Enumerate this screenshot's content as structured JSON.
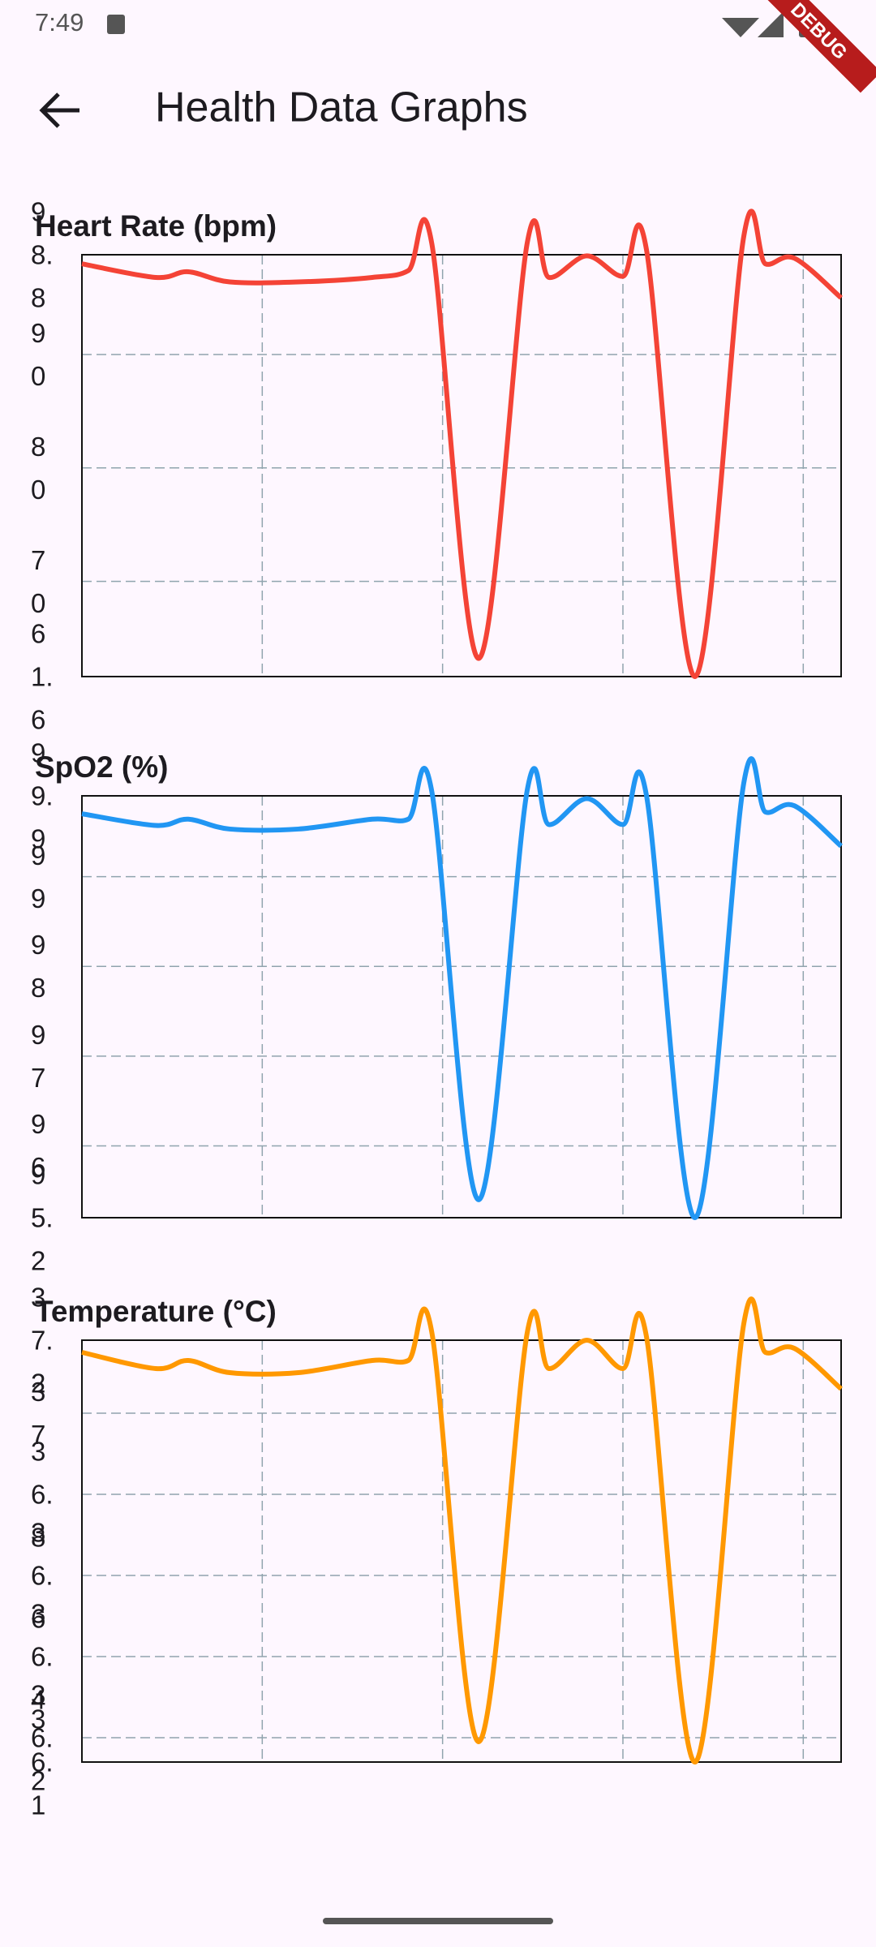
{
  "status_bar": {
    "time": "7:49"
  },
  "app_bar": {
    "title": "Health Data Graphs"
  },
  "debug_banner": "DEBUG",
  "chart_data": [
    {
      "type": "line",
      "title": "Heart Rate (bpm)",
      "color": "#f44336",
      "x": [
        0,
        0.41,
        0.59,
        0.82,
        1.2,
        1.61,
        1.81,
        1.94,
        2.2,
        2.47,
        2.59,
        2.8,
        3.0,
        3.13,
        3.4,
        3.67,
        3.79,
        3.95,
        4.21
      ],
      "values": [
        98.0,
        96.8,
        97.3,
        96.4,
        96.4,
        96.8,
        97.4,
        99.8,
        63.2,
        99.9,
        96.8,
        98.7,
        96.9,
        99.3,
        61.6,
        100.4,
        98.0,
        98.5,
        95.0
      ],
      "xlim": [
        0,
        4.21
      ],
      "xticks": [
        1,
        2,
        3,
        4
      ],
      "ylim": [
        61.6,
        98.8
      ],
      "yticks": [
        61.6,
        70,
        80,
        90,
        98.8
      ],
      "grid": true
    },
    {
      "type": "line",
      "title": "SpO2 (%)",
      "color": "#2196f3",
      "x": [
        0,
        0.41,
        0.59,
        0.82,
        1.2,
        1.61,
        1.81,
        1.94,
        2.2,
        2.47,
        2.59,
        2.8,
        3.0,
        3.13,
        3.4,
        3.67,
        3.79,
        3.95,
        4.21
      ],
      "values": [
        99.7,
        99.57,
        99.64,
        99.53,
        99.53,
        99.64,
        99.64,
        99.95,
        95.4,
        99.97,
        99.58,
        99.87,
        99.58,
        99.91,
        95.2,
        100.04,
        99.72,
        99.79,
        99.34
      ],
      "xlim": [
        0,
        4.21
      ],
      "xticks": [
        1,
        2,
        3,
        4
      ],
      "ylim": [
        95.2,
        99.9
      ],
      "yticks": [
        95.2,
        96,
        97,
        98,
        99,
        99.9
      ],
      "grid": true
    },
    {
      "type": "line",
      "title": "Temperature (°C)",
      "color": "#ff9800",
      "x": [
        0,
        0.41,
        0.59,
        0.82,
        1.2,
        1.61,
        1.81,
        1.94,
        2.2,
        2.47,
        2.59,
        2.8,
        3.0,
        3.13,
        3.4,
        3.67,
        3.79,
        3.95,
        4.21
      ],
      "values": [
        37.15,
        37.11,
        37.13,
        37.1,
        37.1,
        37.13,
        37.13,
        37.2,
        36.19,
        37.2,
        37.11,
        37.18,
        37.11,
        37.19,
        36.14,
        37.22,
        37.15,
        37.16,
        37.06
      ],
      "xlim": [
        0,
        4.21
      ],
      "xticks": [
        1,
        2,
        3,
        4
      ],
      "ylim": [
        36.14,
        37.18
      ],
      "yticks": [
        {
          "value": 36.14,
          "label": "36.1"
        },
        36.2,
        36.4,
        36.6,
        36.8,
        37,
        {
          "value": 37.18,
          "label": "37.2"
        }
      ],
      "grid": true
    }
  ]
}
